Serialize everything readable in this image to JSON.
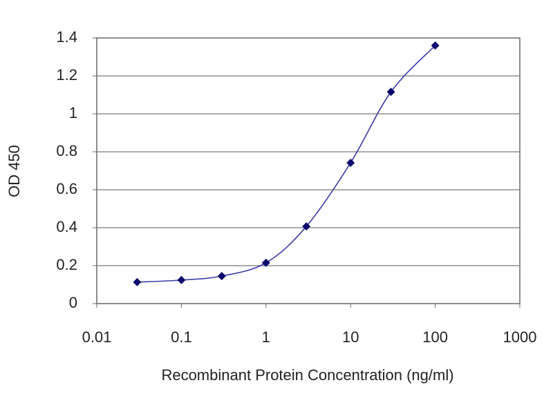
{
  "chart_data": {
    "type": "line",
    "x_label": "Recombinant Protein Concentration (ng/ml)",
    "y_label": "OD 450",
    "x": [
      0.03,
      0.1,
      0.3,
      1,
      3,
      10,
      30,
      100
    ],
    "values": [
      0.113,
      0.124,
      0.145,
      0.215,
      0.407,
      0.742,
      1.116,
      1.36
    ],
    "color": "#3a3aa8",
    "marker_color": "#0a0a6e",
    "xscale": "log",
    "xlim": [
      0.01,
      1000
    ],
    "xticks": [
      0.01,
      0.1,
      1,
      10,
      100,
      1000
    ],
    "ylim": [
      0,
      1.4
    ],
    "yticks": [
      0,
      0.2,
      0.4,
      0.6,
      0.8,
      1,
      1.2,
      1.4
    ],
    "grid": true
  }
}
